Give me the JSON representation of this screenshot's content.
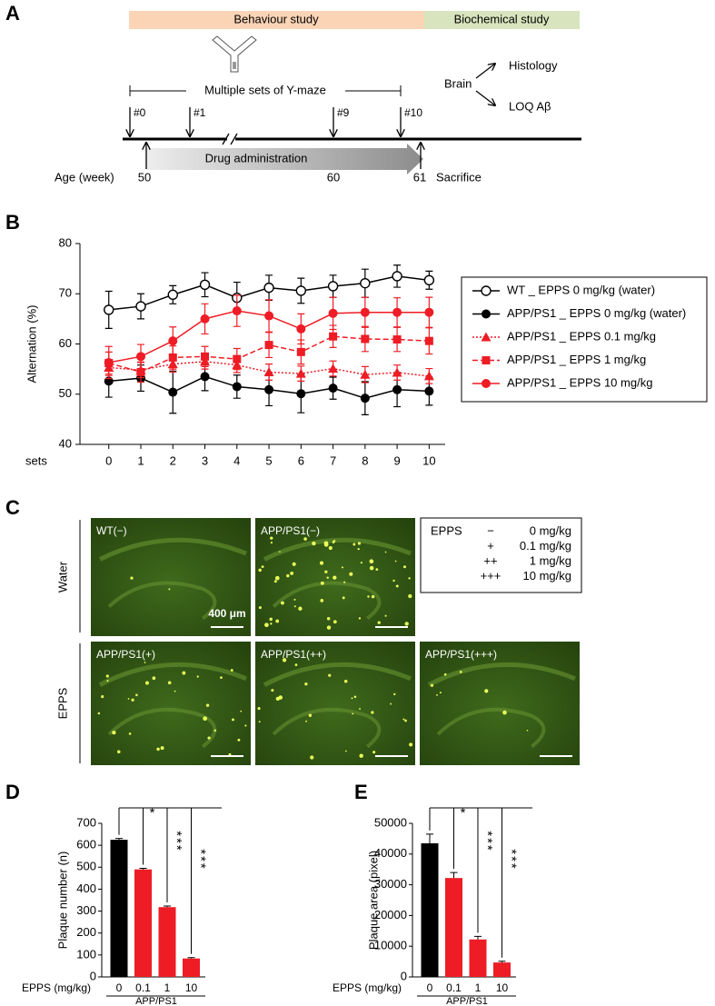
{
  "panel_labels": [
    "A",
    "B",
    "C",
    "D",
    "E"
  ],
  "timeline": {
    "phases": [
      "Behaviour study",
      "Biochemical study"
    ],
    "y_maze": "Multiple sets of Y-maze",
    "sets": [
      "#0",
      "#1",
      "#9",
      "#10"
    ],
    "brain": "Brain",
    "outputs": [
      "Histology",
      "LOQ Aβ"
    ],
    "drug": "Drug administration",
    "age_label": "Age (week)",
    "ages": [
      "50",
      "60",
      "61"
    ],
    "sacrifice": "Sacrifice"
  },
  "chart_data": [
    {
      "type": "line",
      "y_label": "Alternation (%)",
      "x_label": "sets",
      "x": [
        0,
        1,
        2,
        3,
        4,
        5,
        6,
        7,
        8,
        9,
        10
      ],
      "xlim": [
        -0.9,
        10.5
      ],
      "xticks": [
        0,
        1,
        2,
        3,
        4,
        5,
        6,
        7,
        8,
        9,
        10
      ],
      "ylim": [
        40,
        80
      ],
      "yticks": [
        40,
        50,
        60,
        70,
        80
      ],
      "legend": "right",
      "series": [
        {
          "name": "WT _ EPPS 0 mg/kg (water)",
          "color": "#000000",
          "marker": "circle-open",
          "dash": "solid",
          "values": [
            66.8,
            67.5,
            69.8,
            71.8,
            69.2,
            71.2,
            70.6,
            71.5,
            72.1,
            73.5,
            72.7
          ],
          "errors": [
            3.7,
            2.5,
            1.8,
            2.4,
            3.1,
            2.5,
            2.5,
            2.2,
            2.8,
            2.2,
            1.8
          ]
        },
        {
          "name": "APP/PS1 _ EPPS 0 mg/kg (water)",
          "color": "#000000",
          "marker": "circle",
          "dash": "solid",
          "values": [
            52.6,
            53.2,
            50.4,
            53.5,
            51.5,
            50.9,
            50.1,
            51.2,
            49.2,
            50.9,
            50.6
          ],
          "errors": [
            3.2,
            2.6,
            4.2,
            2.8,
            2.3,
            3.2,
            3.8,
            2.2,
            3.3,
            3.4,
            2.8
          ]
        },
        {
          "name": "APP/PS1 _ EPPS 0.1 mg/kg",
          "color": "#ee1c25",
          "marker": "triangle",
          "dash": "dotted",
          "values": [
            55.3,
            54.8,
            56.0,
            56.5,
            55.8,
            54.4,
            54.1,
            55.1,
            53.9,
            54.3,
            53.6
          ],
          "errors": [
            1.6,
            1.5,
            1.6,
            1.5,
            1.5,
            1.6,
            1.5,
            1.5,
            1.6,
            1.5,
            1.5
          ]
        },
        {
          "name": "APP/PS1 _ EPPS 1 mg/kg",
          "color": "#ee1c25",
          "marker": "square",
          "dash": "dashed",
          "values": [
            56.2,
            54.4,
            57.3,
            57.5,
            57.0,
            59.8,
            58.4,
            61.5,
            61.0,
            60.9,
            60.6
          ],
          "errors": [
            2.2,
            2.0,
            2.3,
            2.0,
            2.1,
            2.5,
            2.4,
            2.2,
            2.5,
            2.4,
            2.6
          ]
        },
        {
          "name": "APP/PS1 _ EPPS 10 mg/kg",
          "color": "#ee1c25",
          "marker": "circle",
          "dash": "solid",
          "values": [
            56.3,
            57.5,
            60.6,
            65.0,
            66.6,
            65.6,
            63.0,
            66.1,
            66.3,
            66.3,
            66.3
          ],
          "errors": [
            3.2,
            2.4,
            2.8,
            3.0,
            3.1,
            3.2,
            3.0,
            3.2,
            3.0,
            2.9,
            3.0
          ]
        }
      ]
    },
    {
      "type": "bar",
      "y_label": "Plaque number (n)",
      "x_label": "EPPS (mg/kg)",
      "group_label": "APP/PS1",
      "categories": [
        "0",
        "0.1",
        "1",
        "10"
      ],
      "values": [
        625,
        490,
        318,
        84
      ],
      "errors": [
        6,
        5,
        5,
        4
      ],
      "colors": [
        "#000000",
        "#ee1c25",
        "#ee1c25",
        "#ee1c25"
      ],
      "ylim": [
        0,
        700
      ],
      "yticks": [
        0,
        100,
        200,
        300,
        400,
        500,
        600,
        700
      ],
      "annotations": [
        null,
        "*",
        "***",
        "***"
      ]
    },
    {
      "type": "bar",
      "y_label": "Plaque area (pixel)",
      "x_label": "EPPS (mg/kg)",
      "group_label": "APP/PS1",
      "categories": [
        "0",
        "0.1",
        "1",
        "10"
      ],
      "values": [
        43500,
        32200,
        12200,
        4700
      ],
      "errors": [
        3000,
        1800,
        1000,
        400
      ],
      "colors": [
        "#000000",
        "#ee1c25",
        "#ee1c25",
        "#ee1c25"
      ],
      "ylim": [
        0,
        50000
      ],
      "yticks": [
        0,
        10000,
        20000,
        30000,
        40000,
        50000
      ],
      "annotations": [
        null,
        "*",
        "***",
        "***"
      ]
    }
  ],
  "micrographs": {
    "row_labels": [
      "Water",
      "EPPS"
    ],
    "panels": [
      "WT(−)",
      "APP/PS1(−)",
      "APP/PS1(+)",
      "APP/PS1(++)",
      "APP/PS1(+++)"
    ],
    "scale_bar": "400 μm",
    "legend": {
      "title": "EPPS",
      "rows": [
        [
          "−",
          "0 mg/kg"
        ],
        [
          "+",
          "0.1 mg/kg"
        ],
        [
          "++",
          "1 mg/kg"
        ],
        [
          "+++",
          "10 mg/kg"
        ]
      ]
    }
  }
}
